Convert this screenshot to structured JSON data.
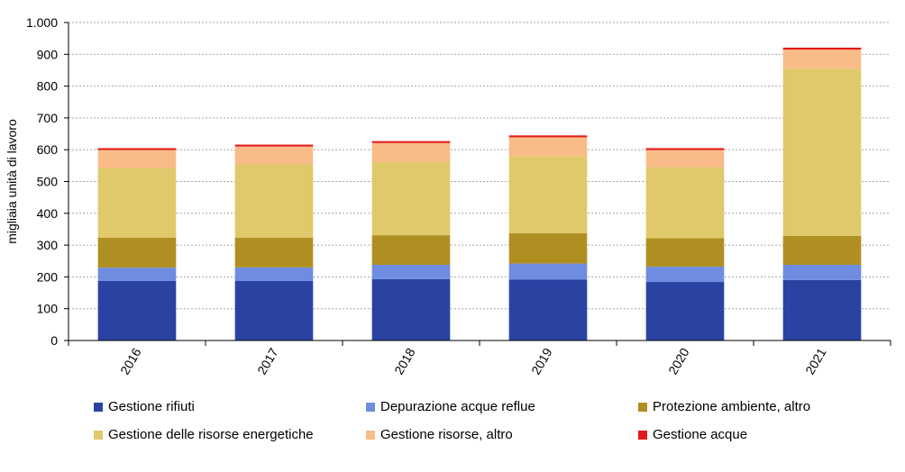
{
  "chart_data": {
    "type": "bar",
    "stacked": true,
    "categories": [
      "2016",
      "2017",
      "2018",
      "2019",
      "2020",
      "2021"
    ],
    "ylabel": "migliaia unità di lavoro",
    "ylim": [
      0,
      1000
    ],
    "yticks": [
      0,
      100,
      200,
      300,
      400,
      500,
      600,
      700,
      800,
      900,
      1000
    ],
    "ytick_labels": [
      "0",
      "100",
      "200",
      "300",
      "400",
      "500",
      "600",
      "700",
      "800",
      "900",
      "1.000"
    ],
    "grid": true,
    "legend_position": "bottom",
    "series": [
      {
        "name": "Gestione rifiuti",
        "color": "#2a43a3",
        "values": [
          187,
          187,
          193,
          192,
          184,
          190
        ]
      },
      {
        "name": "Depurazione acque reflue",
        "color": "#6e8ce0",
        "values": [
          42,
          43,
          45,
          50,
          48,
          48
        ]
      },
      {
        "name": "Protezione ambiente, altro",
        "color": "#b08f22",
        "values": [
          94,
          93,
          93,
          95,
          90,
          91
        ]
      },
      {
        "name": "Gestione delle risorse energetiche",
        "color": "#e0c96a",
        "values": [
          218,
          231,
          230,
          243,
          223,
          526
        ]
      },
      {
        "name": "Gestione risorse, altro",
        "color": "#f9bc88",
        "values": [
          58,
          56,
          60,
          59,
          54,
          60
        ]
      },
      {
        "name": "Gestione acque",
        "color": "#e31a1c",
        "values": [
          6,
          6,
          6,
          6,
          6,
          6
        ]
      }
    ]
  }
}
